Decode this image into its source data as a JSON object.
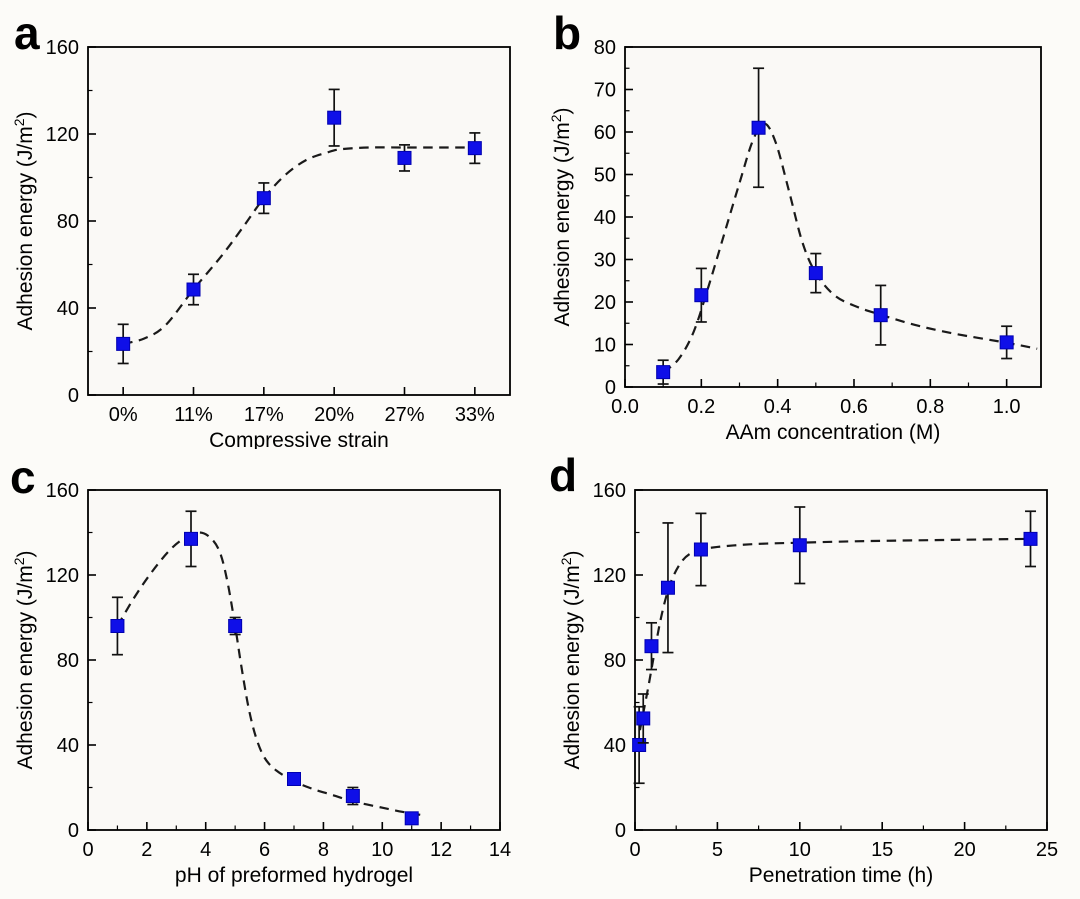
{
  "style": {
    "marker_color": "#0f0fe8",
    "marker_edge_color": "#0000b0",
    "curve_color": "#1a1a1a",
    "error_color": "#111111",
    "axis_color": "#000000",
    "text_color": "#000000",
    "page_background": "#fcfbf8",
    "plot_background": "#faf9f6"
  },
  "chart_data": [
    {
      "letter": "a",
      "type": "scatter",
      "x_type": "category",
      "categories": [
        "0%",
        "11%",
        "17%",
        "20%",
        "27%",
        "33%"
      ],
      "values": [
        23.5,
        48.5,
        90.5,
        127.5,
        109,
        113.5
      ],
      "errors": [
        9,
        7,
        7,
        13,
        6,
        7
      ],
      "xlabel": "Compressive strain",
      "ylabel": "Adhesion energy (J/m²)",
      "ylim": [
        0,
        160
      ],
      "ytick_vals": [
        0,
        40,
        80,
        120,
        160
      ],
      "ytick_labels": [
        "0",
        "40",
        "80",
        "120",
        "160"
      ],
      "yminor_vals": [
        20,
        60,
        100,
        140
      ],
      "grid": false,
      "legend": "none",
      "trend_line": [
        [
          0,
          23.5
        ],
        [
          0.3,
          26
        ],
        [
          0.6,
          32
        ],
        [
          1,
          48.5
        ],
        [
          1.4,
          64
        ],
        [
          1.7,
          77
        ],
        [
          2,
          90.5
        ],
        [
          2.3,
          101
        ],
        [
          2.6,
          108
        ],
        [
          2.9,
          111.5
        ],
        [
          3.1,
          113
        ],
        [
          3.5,
          113.8
        ],
        [
          4,
          113.8
        ],
        [
          4.5,
          113.8
        ],
        [
          5,
          113.8
        ]
      ]
    },
    {
      "letter": "b",
      "type": "scatter",
      "x_type": "numeric",
      "x": [
        0.1,
        0.2,
        0.35,
        0.5,
        0.67,
        1.0
      ],
      "values": [
        3.5,
        21.6,
        61,
        26.8,
        16.9,
        10.5
      ],
      "errors": [
        2.8,
        6.3,
        14,
        4.6,
        7,
        3.8
      ],
      "xlabel": "AAm concentration (M)",
      "ylabel": "Adhesion energy (J/m²)",
      "xlim": [
        0,
        1.09
      ],
      "ylim": [
        0,
        80
      ],
      "xtick_vals": [
        0,
        0.2,
        0.4,
        0.6,
        0.8,
        1.0
      ],
      "xtick_labels": [
        "0.0",
        "0.2",
        "0.4",
        "0.6",
        "0.8",
        "1.0"
      ],
      "xminor_vals": [
        0.1,
        0.3,
        0.5,
        0.7,
        0.9
      ],
      "ytick_vals": [
        0,
        10,
        20,
        30,
        40,
        50,
        60,
        70,
        80
      ],
      "ytick_labels": [
        "0",
        "10",
        "20",
        "30",
        "40",
        "50",
        "60",
        "70",
        "80"
      ],
      "yminor_vals": [
        5,
        15,
        25,
        35,
        45,
        55,
        65,
        75
      ],
      "grid": false,
      "legend": "none",
      "trend_line": [
        [
          0.1,
          3.5
        ],
        [
          0.14,
          6.5
        ],
        [
          0.18,
          13
        ],
        [
          0.22,
          24
        ],
        [
          0.26,
          36
        ],
        [
          0.3,
          48
        ],
        [
          0.335,
          58
        ],
        [
          0.365,
          62
        ],
        [
          0.395,
          57.5
        ],
        [
          0.43,
          46
        ],
        [
          0.465,
          34
        ],
        [
          0.5,
          26.8
        ],
        [
          0.55,
          21.5
        ],
        [
          0.61,
          18.8
        ],
        [
          0.67,
          17
        ],
        [
          0.76,
          14.6
        ],
        [
          0.86,
          12.6
        ],
        [
          1.0,
          10.4
        ],
        [
          1.08,
          9
        ]
      ]
    },
    {
      "letter": "c",
      "type": "scatter",
      "x_type": "numeric",
      "x": [
        1,
        3.5,
        5,
        7,
        9,
        11
      ],
      "values": [
        96,
        137,
        96,
        24,
        16,
        5.5
      ],
      "errors": [
        13.5,
        13,
        4,
        2.5,
        4,
        2
      ],
      "xlabel": "pH of preformed hydrogel",
      "ylabel": "Adhesion energy (J/m²)",
      "xlim": [
        0,
        14
      ],
      "ylim": [
        0,
        160
      ],
      "xtick_vals": [
        0,
        2,
        4,
        6,
        8,
        10,
        12,
        14
      ],
      "xtick_labels": [
        "0",
        "2",
        "4",
        "6",
        "8",
        "10",
        "12",
        "14"
      ],
      "xminor_vals": [
        1,
        3,
        5,
        7,
        9,
        11,
        13
      ],
      "ytick_vals": [
        0,
        40,
        80,
        120,
        160
      ],
      "ytick_labels": [
        "0",
        "40",
        "80",
        "120",
        "160"
      ],
      "yminor_vals": [
        20,
        60,
        100,
        140
      ],
      "grid": false,
      "legend": "none",
      "trend_line": [
        [
          1,
          96
        ],
        [
          1.6,
          110
        ],
        [
          2.2,
          122
        ],
        [
          2.8,
          132
        ],
        [
          3.3,
          137.5
        ],
        [
          3.8,
          140
        ],
        [
          4.2,
          137
        ],
        [
          4.5,
          130
        ],
        [
          4.75,
          116
        ],
        [
          5,
          96
        ],
        [
          5.2,
          78
        ],
        [
          5.45,
          58
        ],
        [
          5.7,
          44
        ],
        [
          6,
          34
        ],
        [
          6.4,
          28
        ],
        [
          7,
          23
        ],
        [
          7.6,
          19.5
        ],
        [
          8.3,
          16.5
        ],
        [
          9,
          13.5
        ],
        [
          10,
          10.5
        ],
        [
          10.7,
          8.5
        ],
        [
          11.35,
          7
        ]
      ]
    },
    {
      "letter": "d",
      "type": "scatter",
      "x_type": "numeric",
      "x": [
        0.25,
        0.5,
        1,
        2,
        4,
        10,
        24
      ],
      "values": [
        40,
        52.5,
        86.5,
        114,
        132,
        134,
        137
      ],
      "errors": [
        18,
        11.5,
        11,
        30.5,
        17,
        18,
        13
      ],
      "xlabel": "Penetration time (h)",
      "ylabel": "Adhesion energy (J/m²)",
      "xlim": [
        0,
        25
      ],
      "ylim": [
        0,
        160
      ],
      "xtick_vals": [
        0,
        5,
        10,
        15,
        20,
        25
      ],
      "xtick_labels": [
        "0",
        "5",
        "10",
        "15",
        "20",
        "25"
      ],
      "xminor_vals": [
        2.5,
        7.5,
        12.5,
        17.5,
        22.5
      ],
      "ytick_vals": [
        0,
        40,
        80,
        120,
        160
      ],
      "ytick_labels": [
        "0",
        "40",
        "80",
        "120",
        "160"
      ],
      "yminor_vals": [
        20,
        60,
        100,
        140
      ],
      "grid": false,
      "legend": "none",
      "trend_line": [
        [
          0.3,
          47
        ],
        [
          0.55,
          57
        ],
        [
          0.8,
          67
        ],
        [
          1.1,
          80
        ],
        [
          1.5,
          97
        ],
        [
          1.9,
          110
        ],
        [
          2.3,
          119
        ],
        [
          2.8,
          126
        ],
        [
          3.3,
          129.8
        ],
        [
          4,
          132
        ],
        [
          5,
          133.2
        ],
        [
          6.5,
          134.2
        ],
        [
          8,
          134.8
        ],
        [
          10,
          135.2
        ],
        [
          13,
          135.8
        ],
        [
          16,
          136.2
        ],
        [
          20,
          136.6
        ],
        [
          24,
          137
        ]
      ]
    }
  ]
}
